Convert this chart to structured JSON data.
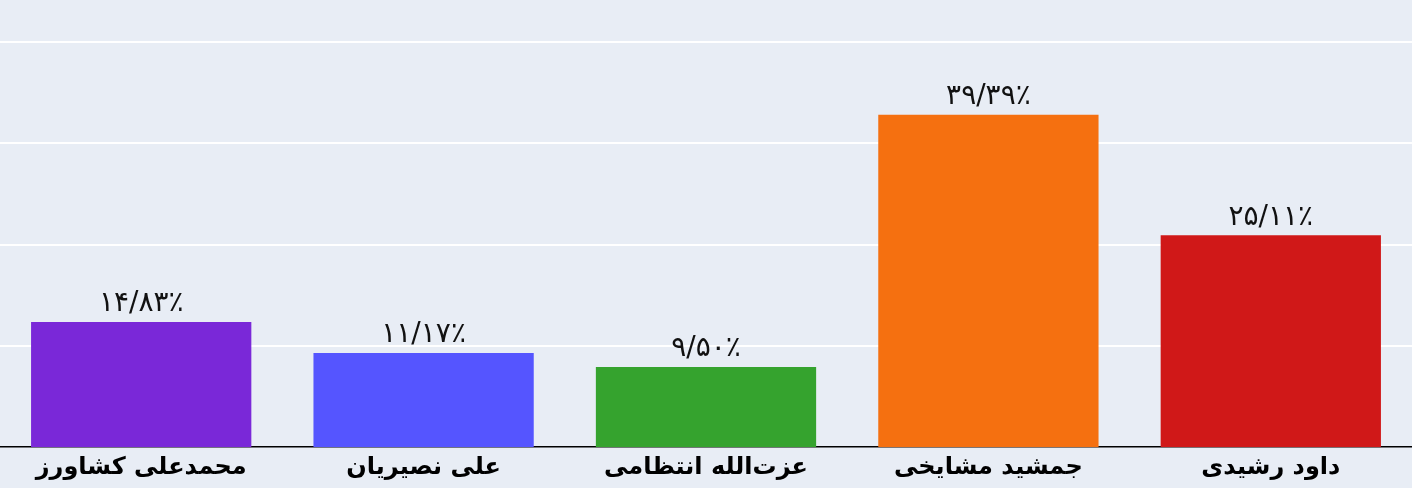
{
  "chart_data": {
    "type": "bar",
    "categories": [
      "محمدعلی کشاورز",
      "علی نصیریان",
      "عزت‌الله انتظامی",
      "جمشید مشایخی",
      "داود رشیدی"
    ],
    "values": [
      14.83,
      11.17,
      9.5,
      39.39,
      25.11
    ],
    "colors": [
      "#7a28d8",
      "#5555ff",
      "#35a32e",
      "#f57010",
      "#d01818"
    ],
    "value_labels": [
      "۱۴/۸۳٪",
      "۱۱/۱۷٪",
      "۹/۵۰٪",
      "۳۹/۳۹٪",
      "۲۵/۱۱٪"
    ],
    "ylim": [
      0,
      48
    ],
    "yticks": [
      {
        "value": 12,
        "label": null
      },
      {
        "value": 24,
        "label": null
      },
      {
        "value": 36,
        "label": null
      },
      {
        "value": 48,
        "label": null
      }
    ],
    "grid": "y",
    "tick_labels": "x"
  }
}
